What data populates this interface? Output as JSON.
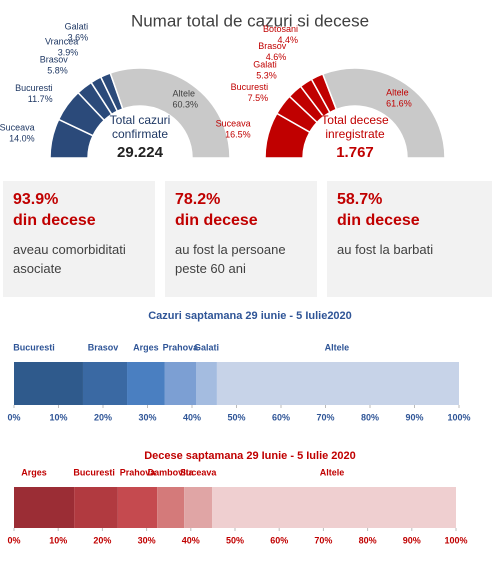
{
  "header": {
    "title": "Numar total de cazuri si decese"
  },
  "chart_data": [
    {
      "type": "pie",
      "center_label": "Total cazuri confirmate",
      "center_value": "29.224",
      "categories": [
        "Suceava",
        "Bucuresti",
        "Brasov",
        "Vrancea",
        "Galati",
        "Altele"
      ],
      "values": [
        14.0,
        11.7,
        5.8,
        3.9,
        3.6,
        60.3
      ],
      "value_labels": [
        "14.0%",
        "11.7%",
        "5.8%",
        "3.9%",
        "3.6%",
        "60.3%"
      ],
      "colors": [
        "#2b4a7a",
        "#2b4a7a",
        "#2b4a7a",
        "#2b4a7a",
        "#2b4a7a",
        "#c9c9c9"
      ],
      "label_color": "#1f3864"
    },
    {
      "type": "pie",
      "center_label": "Total decese inregistrate",
      "center_value": "1.767",
      "categories": [
        "Suceava",
        "Bucuresti",
        "Galati",
        "Brasov",
        "Botosani",
        "Altele"
      ],
      "values": [
        16.5,
        7.5,
        5.3,
        4.6,
        4.4,
        61.6
      ],
      "value_labels": [
        "16.5%",
        "7.5%",
        "5.3%",
        "4.6%",
        "4.4%",
        "61.6%"
      ],
      "colors": [
        "#c00000",
        "#c00000",
        "#c00000",
        "#c00000",
        "#c00000",
        "#c9c9c9"
      ],
      "label_color": "#c00000"
    },
    {
      "type": "stacked_bar",
      "title": "Cazuri saptamana 29 iunie - 5 Iulie2020",
      "title_color": "#2f5597",
      "series": [
        {
          "name": "Bucuresti",
          "color": "#2f5a8c",
          "values": [
            15.5
          ]
        },
        {
          "name": "Brasov",
          "color": "#3a69a3",
          "values": [
            9.9
          ]
        },
        {
          "name": "Arges",
          "color": "#4a7fc1",
          "values": [
            8.5
          ]
        },
        {
          "name": "Prahova",
          "color": "#7c9fd3",
          "values": [
            7.0
          ]
        },
        {
          "name": "Galati",
          "color": "#a4bce0",
          "values": [
            4.7
          ]
        },
        {
          "name": "Altele",
          "color": "#c7d3e8",
          "values": [
            54.4
          ]
        }
      ],
      "xlim": [
        0,
        100
      ],
      "xticks": [
        {
          "value": 0,
          "label": "0%"
        },
        {
          "value": 10,
          "label": "10%"
        },
        {
          "value": 20,
          "label": "20%"
        },
        {
          "value": 30,
          "label": "30%"
        },
        {
          "value": 40,
          "label": "40%"
        },
        {
          "value": 50,
          "label": "50%"
        },
        {
          "value": 60,
          "label": "60%"
        },
        {
          "value": 70,
          "label": "70%"
        },
        {
          "value": 80,
          "label": "80%"
        },
        {
          "value": 90,
          "label": "90%"
        },
        {
          "value": 100,
          "label": "100%"
        }
      ]
    },
    {
      "type": "stacked_bar",
      "title": "Decese saptamana 29 Iunie - 5 Iulie 2020",
      "title_color": "#c00000",
      "series": [
        {
          "name": "Arges",
          "color": "#9b2d35",
          "values": [
            13.6
          ]
        },
        {
          "name": "Bucuresti",
          "color": "#b13a40",
          "values": [
            9.9
          ]
        },
        {
          "name": "Prahova",
          "color": "#c54a4f",
          "values": [
            8.9
          ]
        },
        {
          "name": "Dambovita",
          "color": "#d47a7a",
          "values": [
            6.1
          ]
        },
        {
          "name": "Suceava",
          "color": "#e0a5a5",
          "values": [
            6.3
          ]
        },
        {
          "name": "Altele",
          "color": "#efcfd0",
          "values": [
            55.2
          ]
        }
      ],
      "xlim": [
        0,
        100
      ],
      "xticks": [
        {
          "value": 0,
          "label": "0%"
        },
        {
          "value": 10,
          "label": "10%"
        },
        {
          "value": 20,
          "label": "20%"
        },
        {
          "value": 30,
          "label": "30%"
        },
        {
          "value": 40,
          "label": "40%"
        },
        {
          "value": 50,
          "label": "50%"
        },
        {
          "value": 60,
          "label": "60%"
        },
        {
          "value": 70,
          "label": "70%"
        },
        {
          "value": 80,
          "label": "80%"
        },
        {
          "value": 90,
          "label": "90%"
        },
        {
          "value": 100,
          "label": "100%"
        }
      ]
    }
  ],
  "cards": [
    {
      "value": "93.9%",
      "subtitle": "din decese",
      "text": "aveau comorbiditati asociate"
    },
    {
      "value": "78.2%",
      "subtitle": "din decese",
      "text": "au fost la persoane peste 60 ani"
    },
    {
      "value": "58.7%",
      "subtitle": "din decese",
      "text": "au fost la barbati"
    }
  ]
}
